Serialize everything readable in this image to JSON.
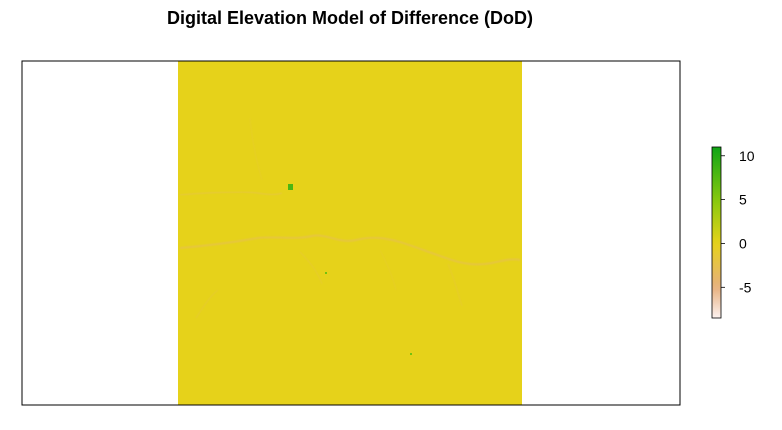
{
  "chart_data": {
    "type": "heatmap",
    "title": "Digital Elevation Model of Difference (DoD)",
    "xlabel": "",
    "ylabel": "",
    "grid": false,
    "legend": {
      "placement": "right",
      "ticks": [
        10,
        5,
        0,
        -5
      ],
      "tick_labels": [
        "10",
        "5",
        "0",
        "-5"
      ],
      "range": [
        -8.5,
        11
      ],
      "colors": [
        {
          "value": 11,
          "color": "#0fa416"
        },
        {
          "value": 5,
          "color": "#86c80e"
        },
        {
          "value": 0,
          "color": "#e6d21a"
        },
        {
          "value": -5,
          "color": "#e6b07e"
        },
        {
          "value": -8.5,
          "color": "#fdf2f0"
        }
      ]
    },
    "raster": {
      "dominant_value": 0,
      "dominant_color": "#e6d21a",
      "features": [
        {
          "name": "negative-change-channel",
          "value": -3
        },
        {
          "name": "positive-change-spot-1",
          "value": 8
        },
        {
          "name": "positive-change-spot-2",
          "value": 6
        },
        {
          "name": "positive-change-spot-3",
          "value": 6
        }
      ]
    }
  }
}
